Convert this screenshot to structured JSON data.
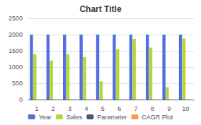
{
  "chart_data": {
    "type": "bar",
    "title": "Chart Title",
    "categories": [
      1,
      2,
      3,
      4,
      5,
      6,
      7,
      8,
      9,
      10
    ],
    "series": [
      {
        "name": "Year",
        "values": [
          2000,
          2000,
          2000,
          2000,
          2000,
          2000,
          2000,
          2000,
          2000,
          2000
        ]
      },
      {
        "name": "Sales",
        "values": [
          1400,
          1200,
          1390,
          1310,
          560,
          1550,
          1870,
          1600,
          380,
          1880
        ]
      },
      {
        "name": "Parameter",
        "values": [
          2,
          2,
          2,
          2,
          2,
          2,
          2,
          2,
          2,
          2
        ]
      },
      {
        "name": "CAGR Plot",
        "values": [
          2,
          2,
          2,
          2,
          2,
          2,
          2,
          2,
          2,
          2
        ]
      }
    ],
    "ylim": [
      0,
      2500
    ],
    "yticks": [
      0,
      500,
      1000,
      1500,
      2000,
      2500
    ],
    "grid": true,
    "legend": "bottom"
  }
}
